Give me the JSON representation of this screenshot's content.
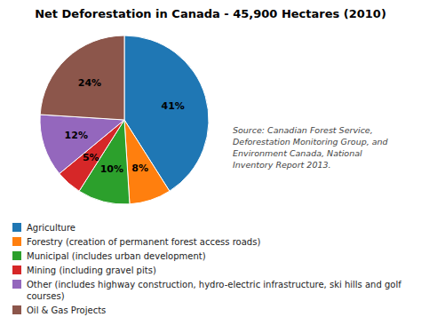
{
  "chart_data": {
    "type": "pie",
    "title": "Net Deforestation in Canada - 45,900 Hectares (2010)",
    "categories": [
      "Agriculture",
      "Forestry (creation of permanent forest access roads)",
      "Municipal (includes urban development)",
      "Mining (including gravel pits)",
      "Other (includes highway construction, hydro-electric infrastructure, ski hills and golf courses)",
      "Oil & Gas Projects"
    ],
    "values": [
      41,
      8,
      10,
      5,
      12,
      24
    ],
    "value_labels": [
      "41%",
      "8%",
      "10%",
      "5%",
      "12%",
      "24%"
    ],
    "data_labels": true,
    "legend": "lower left",
    "annotations": [
      "Source: Canadian Forest Service,\nDeforestation Monitoring Group, and\nEnvironment Canada, National\nInventory Report 2013."
    ]
  }
}
